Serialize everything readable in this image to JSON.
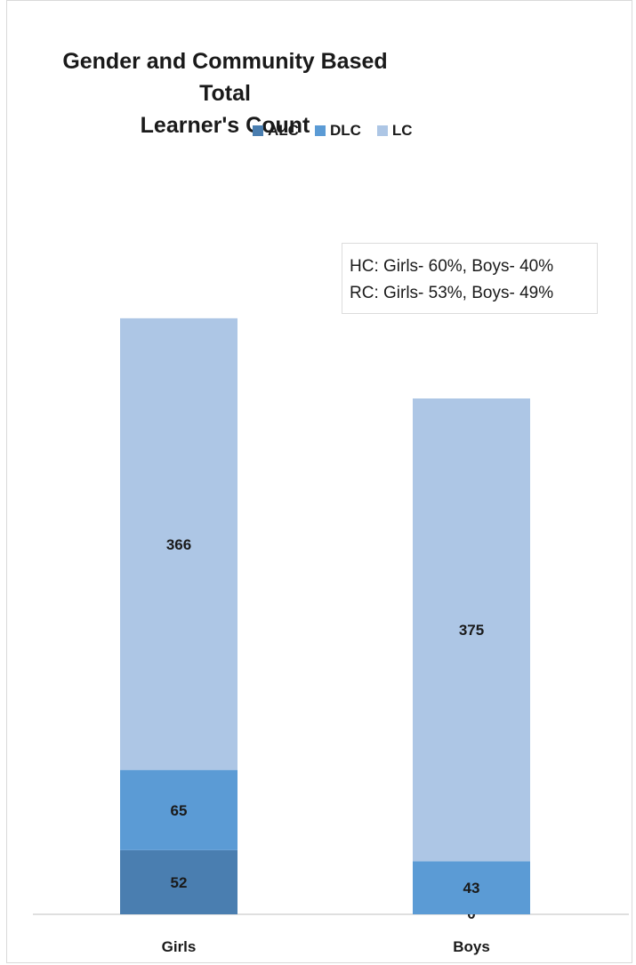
{
  "chart_data": {
    "type": "bar",
    "stacked": true,
    "title": "Gender and Community Based Total Learner's Count",
    "title_lines": [
      "Gender and Community Based Total",
      "Learner's Count"
    ],
    "categories": [
      "Girls",
      "Boys"
    ],
    "series": [
      {
        "name": "ALC",
        "values": [
          52,
          0
        ],
        "color": "#4a7eb0"
      },
      {
        "name": "DLC",
        "values": [
          65,
          43
        ],
        "color": "#5b9bd5"
      },
      {
        "name": "LC",
        "values": [
          366,
          375
        ],
        "color": "#adc6e5"
      }
    ],
    "data_labels": {
      "ALC": [
        "52",
        "0"
      ],
      "DLC": [
        "65",
        "43"
      ],
      "LC": [
        "366",
        "375"
      ]
    },
    "annotation": [
      "HC: Girls- 60%, Boys- 40%",
      "RC: Girls- 53%, Boys- 49%"
    ],
    "legend_position": "top",
    "grid": false,
    "ylim": [
      0,
      500
    ]
  }
}
